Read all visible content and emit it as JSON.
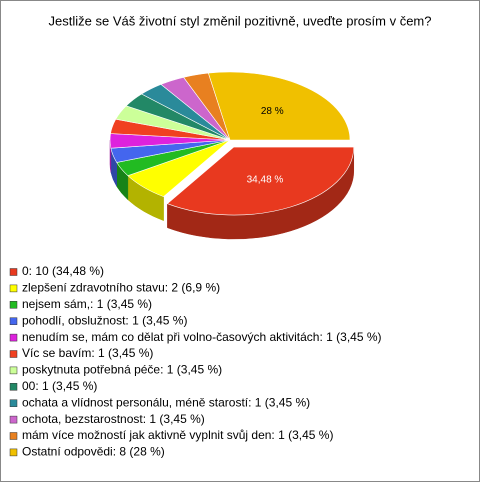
{
  "chart_data": {
    "type": "pie3d",
    "title": "Jestliže se Váš životní styl změnil pozitivně, uveďte prosím v čem?",
    "categories": [
      "0: 10 (34,48 %)",
      "zlepšení zdravotního stavu: 2 (6,9 %)",
      "nejsem sám,: 1 (3,45 %)",
      "pohodlí, obslužnost: 1 (3,45 %)",
      "nenudím se, mám co dělat při volno-časových aktivitách: 1 (3,45 %)",
      "Víc se bavím: 1 (3,45 %)",
      "poskytnuta potřebná péče: 1 (3,45 %)",
      "00: 1 (3,45 %)",
      "ochata a vlídnost personálu, méně starostí: 1 (3,45 %)",
      "ochota, bezstarostnost: 1 (3,45 %)",
      "mám více možností jak aktivně vyplnit svůj den: 1 (3,45 %)",
      "Ostatní odpovědi: 8 (28 %)"
    ],
    "values": [
      34.48,
      6.9,
      3.45,
      3.45,
      3.45,
      3.45,
      3.45,
      3.45,
      3.45,
      3.45,
      3.45,
      28
    ],
    "value_labels": [
      "34,48 %",
      null,
      null,
      null,
      null,
      null,
      null,
      null,
      null,
      null,
      null,
      "28 %"
    ],
    "colors": [
      "#e8391f",
      "#ffff00",
      "#22bb22",
      "#4466ee",
      "#dd22dd",
      "#f04020",
      "#ccff99",
      "#228866",
      "#2a8a9a",
      "#cc66cc",
      "#e88020",
      "#f0c000"
    ]
  }
}
